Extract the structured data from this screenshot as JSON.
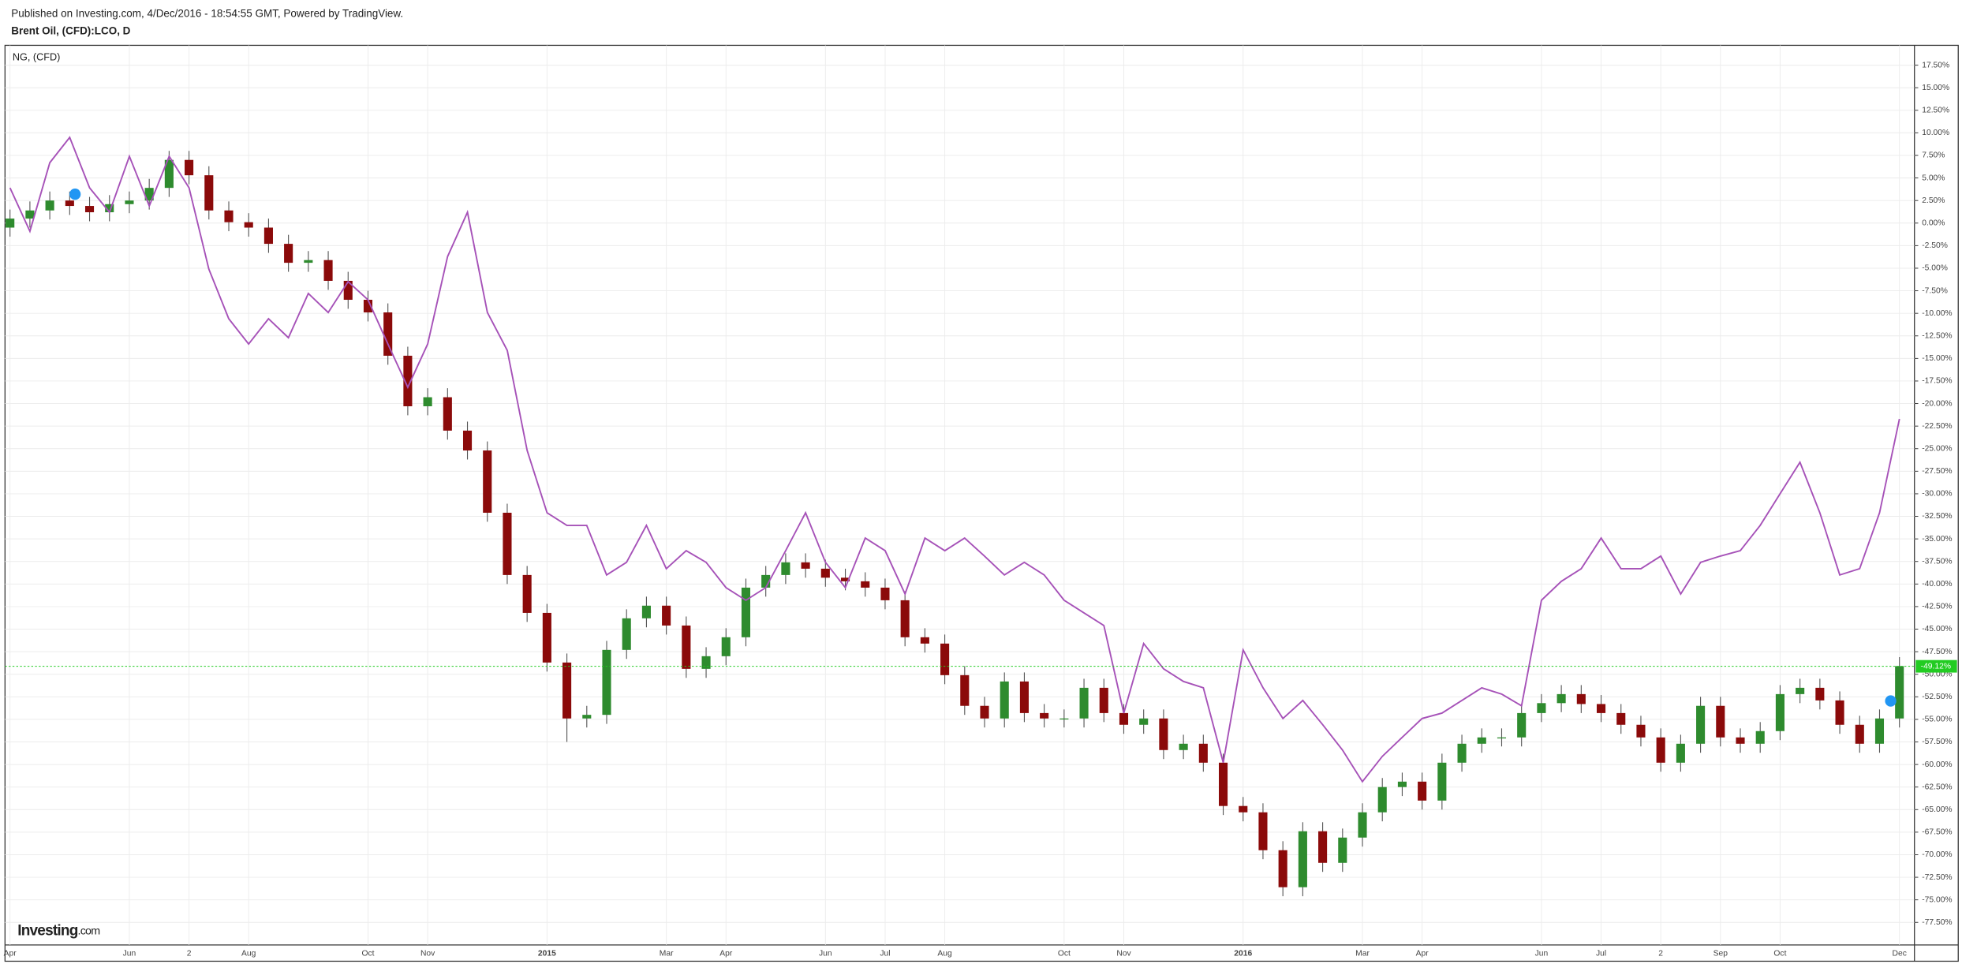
{
  "header": {
    "published": "Published on Investing.com, 4/Dec/2016 - 18:54:55 GMT, Powered by TradingView."
  },
  "chart_data": {
    "type": "candlestick",
    "title": "Brent Oil, (CFD):LCO, D",
    "logo": [
      "Investing",
      ".com"
    ],
    "categories": [
      "Apr",
      null,
      null,
      null,
      null,
      null,
      "Jun",
      null,
      null,
      "2",
      null,
      null,
      "Aug",
      null,
      null,
      null,
      null,
      null,
      "Oct",
      null,
      null,
      "Nov",
      null,
      null,
      null,
      null,
      null,
      "2015",
      null,
      null,
      null,
      null,
      null,
      "Mar",
      null,
      null,
      "Apr",
      null,
      null,
      null,
      null,
      "Jun",
      null,
      null,
      "Jul",
      null,
      null,
      "Aug",
      null,
      null,
      null,
      null,
      null,
      "Oct",
      null,
      null,
      "Nov",
      null,
      null,
      null,
      null,
      null,
      "2016",
      null,
      null,
      null,
      null,
      null,
      "Mar",
      null,
      null,
      "Apr",
      null,
      null,
      null,
      null,
      null,
      "Jun",
      null,
      null,
      "Jul",
      null,
      null,
      "2",
      null,
      null,
      "Sep",
      null,
      null,
      "Oct",
      null,
      null,
      null,
      null,
      null,
      "Dec"
    ],
    "bold_categories": [
      "2015",
      "2016"
    ],
    "candles": {
      "up_color": "#2e8b2e",
      "down_color": "#8b0a0a",
      "open": [
        -0.5,
        0.5,
        1.4,
        2.5,
        1.9,
        1.2,
        2.1,
        2.5,
        3.9,
        7.0,
        5.3,
        1.4,
        0.1,
        -0.5,
        -2.3,
        -4.4,
        -4.1,
        -6.4,
        -8.5,
        -9.9,
        -14.7,
        -20.3,
        -19.3,
        -23.0,
        -25.2,
        -32.1,
        -39.0,
        -43.2,
        -48.7,
        -54.9,
        -54.5,
        -47.3,
        -43.8,
        -42.4,
        -44.6,
        -49.4,
        -48.0,
        -45.9,
        -40.4,
        -39.0,
        -37.6,
        -38.3,
        -39.3,
        -39.7,
        -40.4,
        -41.8,
        -45.9,
        -46.6,
        -50.1,
        -53.5,
        -54.9,
        -50.8,
        -54.3,
        -54.9,
        -54.9,
        -51.5,
        -54.3,
        -55.6,
        -54.9,
        -58.4,
        -57.7,
        -59.8,
        -64.6,
        -65.3,
        -69.5,
        -73.6,
        -67.4,
        -70.9,
        -68.1,
        -65.3,
        -62.5,
        -61.9,
        -64.0,
        -59.8,
        -57.7,
        -57.0,
        -57.0,
        -54.3,
        -53.2,
        -52.2,
        -53.3,
        -54.3,
        -55.6,
        -57.0,
        -59.8,
        -57.7,
        -53.5,
        -57.0,
        -57.7,
        -56.3,
        -52.2,
        -51.5,
        -52.9,
        -55.6,
        -57.7,
        -54.9
      ],
      "high": [
        1.5,
        2.4,
        3.5,
        3.5,
        2.9,
        3.1,
        3.5,
        4.9,
        8.0,
        8.0,
        6.3,
        2.4,
        1.1,
        0.5,
        -1.3,
        -3.1,
        -3.1,
        -5.4,
        -7.5,
        -8.9,
        -13.7,
        -18.3,
        -18.3,
        -22.0,
        -24.2,
        -31.1,
        -38.0,
        -42.2,
        -47.7,
        -53.5,
        -46.3,
        -42.8,
        -41.4,
        -41.4,
        -43.6,
        -47.0,
        -44.9,
        -39.4,
        -38.0,
        -36.6,
        -36.6,
        -37.3,
        -38.3,
        -38.7,
        -39.4,
        -40.8,
        -44.9,
        -45.6,
        -49.1,
        -52.5,
        -49.8,
        -49.8,
        -53.3,
        -53.9,
        -50.5,
        -50.5,
        -53.3,
        -53.9,
        -53.9,
        -56.7,
        -56.7,
        -58.8,
        -63.6,
        -64.3,
        -68.5,
        -66.4,
        -66.4,
        -67.1,
        -64.3,
        -61.5,
        -60.9,
        -60.9,
        -58.8,
        -56.7,
        -56.0,
        -56.0,
        -53.3,
        -52.2,
        -51.2,
        -51.2,
        -52.3,
        -53.3,
        -54.6,
        -56.0,
        -56.7,
        -52.5,
        -52.5,
        -56.0,
        -55.3,
        -51.2,
        -50.5,
        -50.5,
        -51.9,
        -54.6,
        -53.9,
        -48.1
      ],
      "low": [
        -1.5,
        -0.5,
        0.4,
        0.9,
        0.2,
        0.2,
        1.1,
        1.5,
        2.9,
        4.3,
        0.4,
        -0.9,
        -1.5,
        -3.3,
        -5.4,
        -5.4,
        -7.4,
        -9.5,
        -10.9,
        -15.7,
        -21.3,
        -21.3,
        -24.0,
        -26.2,
        -33.1,
        -40.0,
        -44.2,
        -49.7,
        -57.5,
        -55.9,
        -55.5,
        -48.3,
        -44.8,
        -45.6,
        -50.4,
        -50.4,
        -49.0,
        -46.9,
        -41.4,
        -40.0,
        -39.3,
        -40.3,
        -40.7,
        -41.4,
        -42.8,
        -46.9,
        -47.6,
        -51.1,
        -54.5,
        -55.9,
        -55.9,
        -55.3,
        -55.9,
        -55.9,
        -55.9,
        -55.3,
        -56.6,
        -56.6,
        -59.4,
        -59.4,
        -60.8,
        -65.6,
        -66.3,
        -70.5,
        -74.6,
        -74.6,
        -71.9,
        -71.9,
        -69.1,
        -66.3,
        -63.5,
        -65.0,
        -65.0,
        -60.8,
        -58.7,
        -58.0,
        -58.0,
        -55.3,
        -54.2,
        -54.3,
        -55.3,
        -56.6,
        -58.0,
        -60.8,
        -60.8,
        -58.7,
        -58.0,
        -58.7,
        -58.7,
        -57.3,
        -53.2,
        -53.9,
        -56.6,
        -58.7,
        -58.7,
        -55.9
      ],
      "close": [
        0.5,
        1.4,
        2.5,
        1.9,
        1.2,
        2.1,
        2.5,
        3.9,
        7.0,
        5.3,
        1.4,
        0.1,
        -0.5,
        -2.3,
        -4.4,
        -4.1,
        -6.4,
        -8.5,
        -9.9,
        -14.7,
        -20.3,
        -19.3,
        -23.0,
        -25.2,
        -32.1,
        -39.0,
        -43.2,
        -48.7,
        -54.9,
        -54.5,
        -47.3,
        -43.8,
        -42.4,
        -44.6,
        -49.4,
        -48.0,
        -45.9,
        -40.4,
        -39.0,
        -37.6,
        -38.3,
        -39.3,
        -39.7,
        -40.4,
        -41.8,
        -45.9,
        -46.6,
        -50.1,
        -53.5,
        -54.9,
        -50.8,
        -54.3,
        -54.9,
        -54.9,
        -51.5,
        -54.3,
        -55.6,
        -54.9,
        -58.4,
        -57.7,
        -59.8,
        -64.6,
        -65.3,
        -69.5,
        -73.6,
        -67.4,
        -70.9,
        -68.1,
        -65.3,
        -62.5,
        -61.9,
        -64.0,
        -59.8,
        -57.7,
        -57.0,
        -57.0,
        -54.3,
        -53.2,
        -52.2,
        -53.3,
        -54.3,
        -55.6,
        -57.0,
        -59.8,
        -57.7,
        -53.5,
        -57.0,
        -57.7,
        -56.3,
        -52.2,
        -51.5,
        -52.9,
        -55.6,
        -57.7,
        -54.9,
        -49.1
      ]
    },
    "series": [
      {
        "name": "NG,  (CFD)",
        "color": "#a652b8",
        "values": [
          3.9,
          -0.9,
          6.7,
          9.5,
          3.9,
          1.2,
          7.4,
          1.9,
          7.4,
          3.9,
          -5.1,
          -10.6,
          -13.4,
          -10.6,
          -12.7,
          -7.8,
          -9.9,
          -6.5,
          -8.5,
          -13.4,
          -18.2,
          -13.4,
          -3.7,
          1.2,
          -9.9,
          -14.1,
          -25.2,
          -32.1,
          -33.5,
          -33.5,
          -39.0,
          -37.6,
          -33.5,
          -38.3,
          -36.3,
          -37.6,
          -40.4,
          -41.8,
          -40.4,
          -36.3,
          -32.1,
          -37.6,
          -40.4,
          -34.9,
          -36.3,
          -41.1,
          -34.9,
          -36.3,
          -34.9,
          -36.9,
          -39.0,
          -37.6,
          -39.0,
          -41.8,
          -43.2,
          -44.6,
          -54.3,
          -46.6,
          -49.4,
          -50.8,
          -51.5,
          -59.8,
          -47.3,
          -51.5,
          -54.9,
          -52.9,
          -55.6,
          -58.4,
          -61.9,
          -59.1,
          -57.0,
          -54.9,
          -54.3,
          -52.9,
          -51.5,
          -52.2,
          -53.5,
          -41.8,
          -39.7,
          -38.3,
          -34.9,
          -38.3,
          -38.3,
          -36.9,
          -41.1,
          -37.6,
          -36.9,
          -36.3,
          -33.5,
          -30.0,
          -26.5,
          -32.1,
          -39.0,
          -38.3,
          -32.1,
          -21.7
        ]
      }
    ],
    "last_label": {
      "value": -49.12,
      "label": "-49.12%",
      "color": "#22cc22"
    },
    "ylim": [
      -80,
      19.7
    ],
    "yticks": [
      {
        "value": 17.5,
        "label": "17.50%"
      },
      {
        "value": 15,
        "label": "15.00%"
      },
      {
        "value": 12.5,
        "label": "12.50%"
      },
      {
        "value": 10,
        "label": "10.00%"
      },
      {
        "value": 7.5,
        "label": "7.50%"
      },
      {
        "value": 5,
        "label": "5.00%"
      },
      {
        "value": 2.5,
        "label": "2.50%"
      },
      {
        "value": 0,
        "label": "0.00%"
      },
      {
        "value": -2.5,
        "label": "-2.50%"
      },
      {
        "value": -5,
        "label": "-5.00%"
      },
      {
        "value": -7.5,
        "label": "-7.50%"
      },
      {
        "value": -10,
        "label": "-10.00%"
      },
      {
        "value": -12.5,
        "label": "-12.50%"
      },
      {
        "value": -15,
        "label": "-15.00%"
      },
      {
        "value": -17.5,
        "label": "-17.50%"
      },
      {
        "value": -20,
        "label": "-20.00%"
      },
      {
        "value": -22.5,
        "label": "-22.50%"
      },
      {
        "value": -25,
        "label": "-25.00%"
      },
      {
        "value": -27.5,
        "label": "-27.50%"
      },
      {
        "value": -30,
        "label": "-30.00%"
      },
      {
        "value": -32.5,
        "label": "-32.50%"
      },
      {
        "value": -35,
        "label": "-35.00%"
      },
      {
        "value": -37.5,
        "label": "-37.50%"
      },
      {
        "value": -40,
        "label": "-40.00%"
      },
      {
        "value": -42.5,
        "label": "-42.50%"
      },
      {
        "value": -45,
        "label": "-45.00%"
      },
      {
        "value": -47.5,
        "label": "-47.50%"
      },
      {
        "value": -50,
        "label": "-50.00%"
      },
      {
        "value": -52.5,
        "label": "-52.50%"
      },
      {
        "value": -55,
        "label": "-55.00%"
      },
      {
        "value": -57.5,
        "label": "-57.50%"
      },
      {
        "value": -60,
        "label": "-60.00%"
      },
      {
        "value": -62.5,
        "label": "-62.50%"
      },
      {
        "value": -65,
        "label": "-65.00%"
      },
      {
        "value": -67.5,
        "label": "-67.50%"
      },
      {
        "value": -70,
        "label": "-70.00%"
      },
      {
        "value": -72.5,
        "label": "-72.50%"
      },
      {
        "value": -75,
        "label": "-75.00%"
      },
      {
        "value": -77.5,
        "label": "-77.50%"
      }
    ],
    "grid": true
  }
}
